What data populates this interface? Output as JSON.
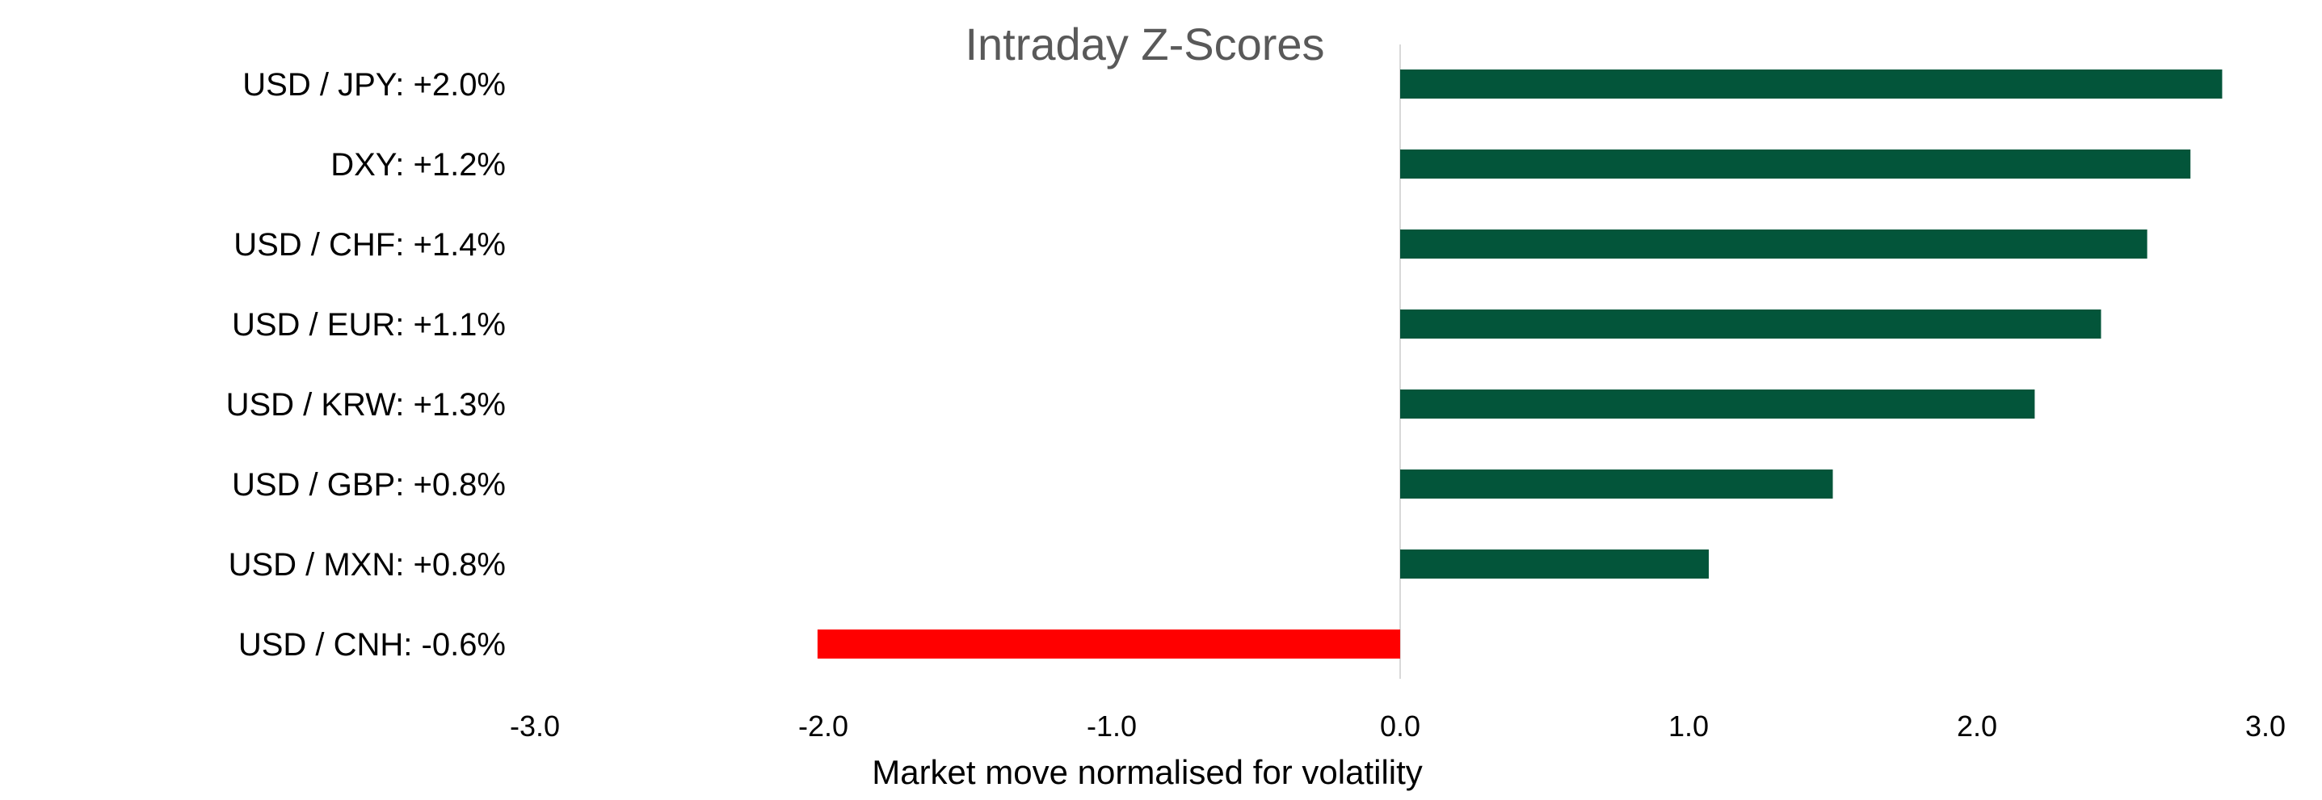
{
  "chart_data": {
    "type": "bar",
    "orientation": "horizontal",
    "title": "Intraday Z-Scores",
    "xlabel": "Market move normalised for volatility",
    "ylabel": "",
    "xlim": [
      -3.0,
      3.0
    ],
    "xticks": [
      -3.0,
      -2.0,
      -1.0,
      0.0,
      1.0,
      2.0,
      3.0
    ],
    "xtick_labels": [
      "-3.0",
      "-2.0",
      "-1.0",
      "0.0",
      "1.0",
      "2.0",
      "3.0"
    ],
    "grid": false,
    "legend": "none",
    "categories": [
      "USD / JPY: +2.0%",
      "DXY: +1.2%",
      "USD / CHF: +1.4%",
      "USD / EUR: +1.1%",
      "USD / KRW: +1.3%",
      "USD / GBP: +0.8%",
      "USD / MXN: +0.8%",
      "USD / CNH: -0.6%"
    ],
    "values": [
      2.85,
      2.74,
      2.59,
      2.43,
      2.2,
      1.5,
      1.07,
      -2.02
    ],
    "colors": {
      "positive": "#03553A",
      "negative": "#FF0000",
      "zero_line": "#D9D9D9"
    }
  }
}
